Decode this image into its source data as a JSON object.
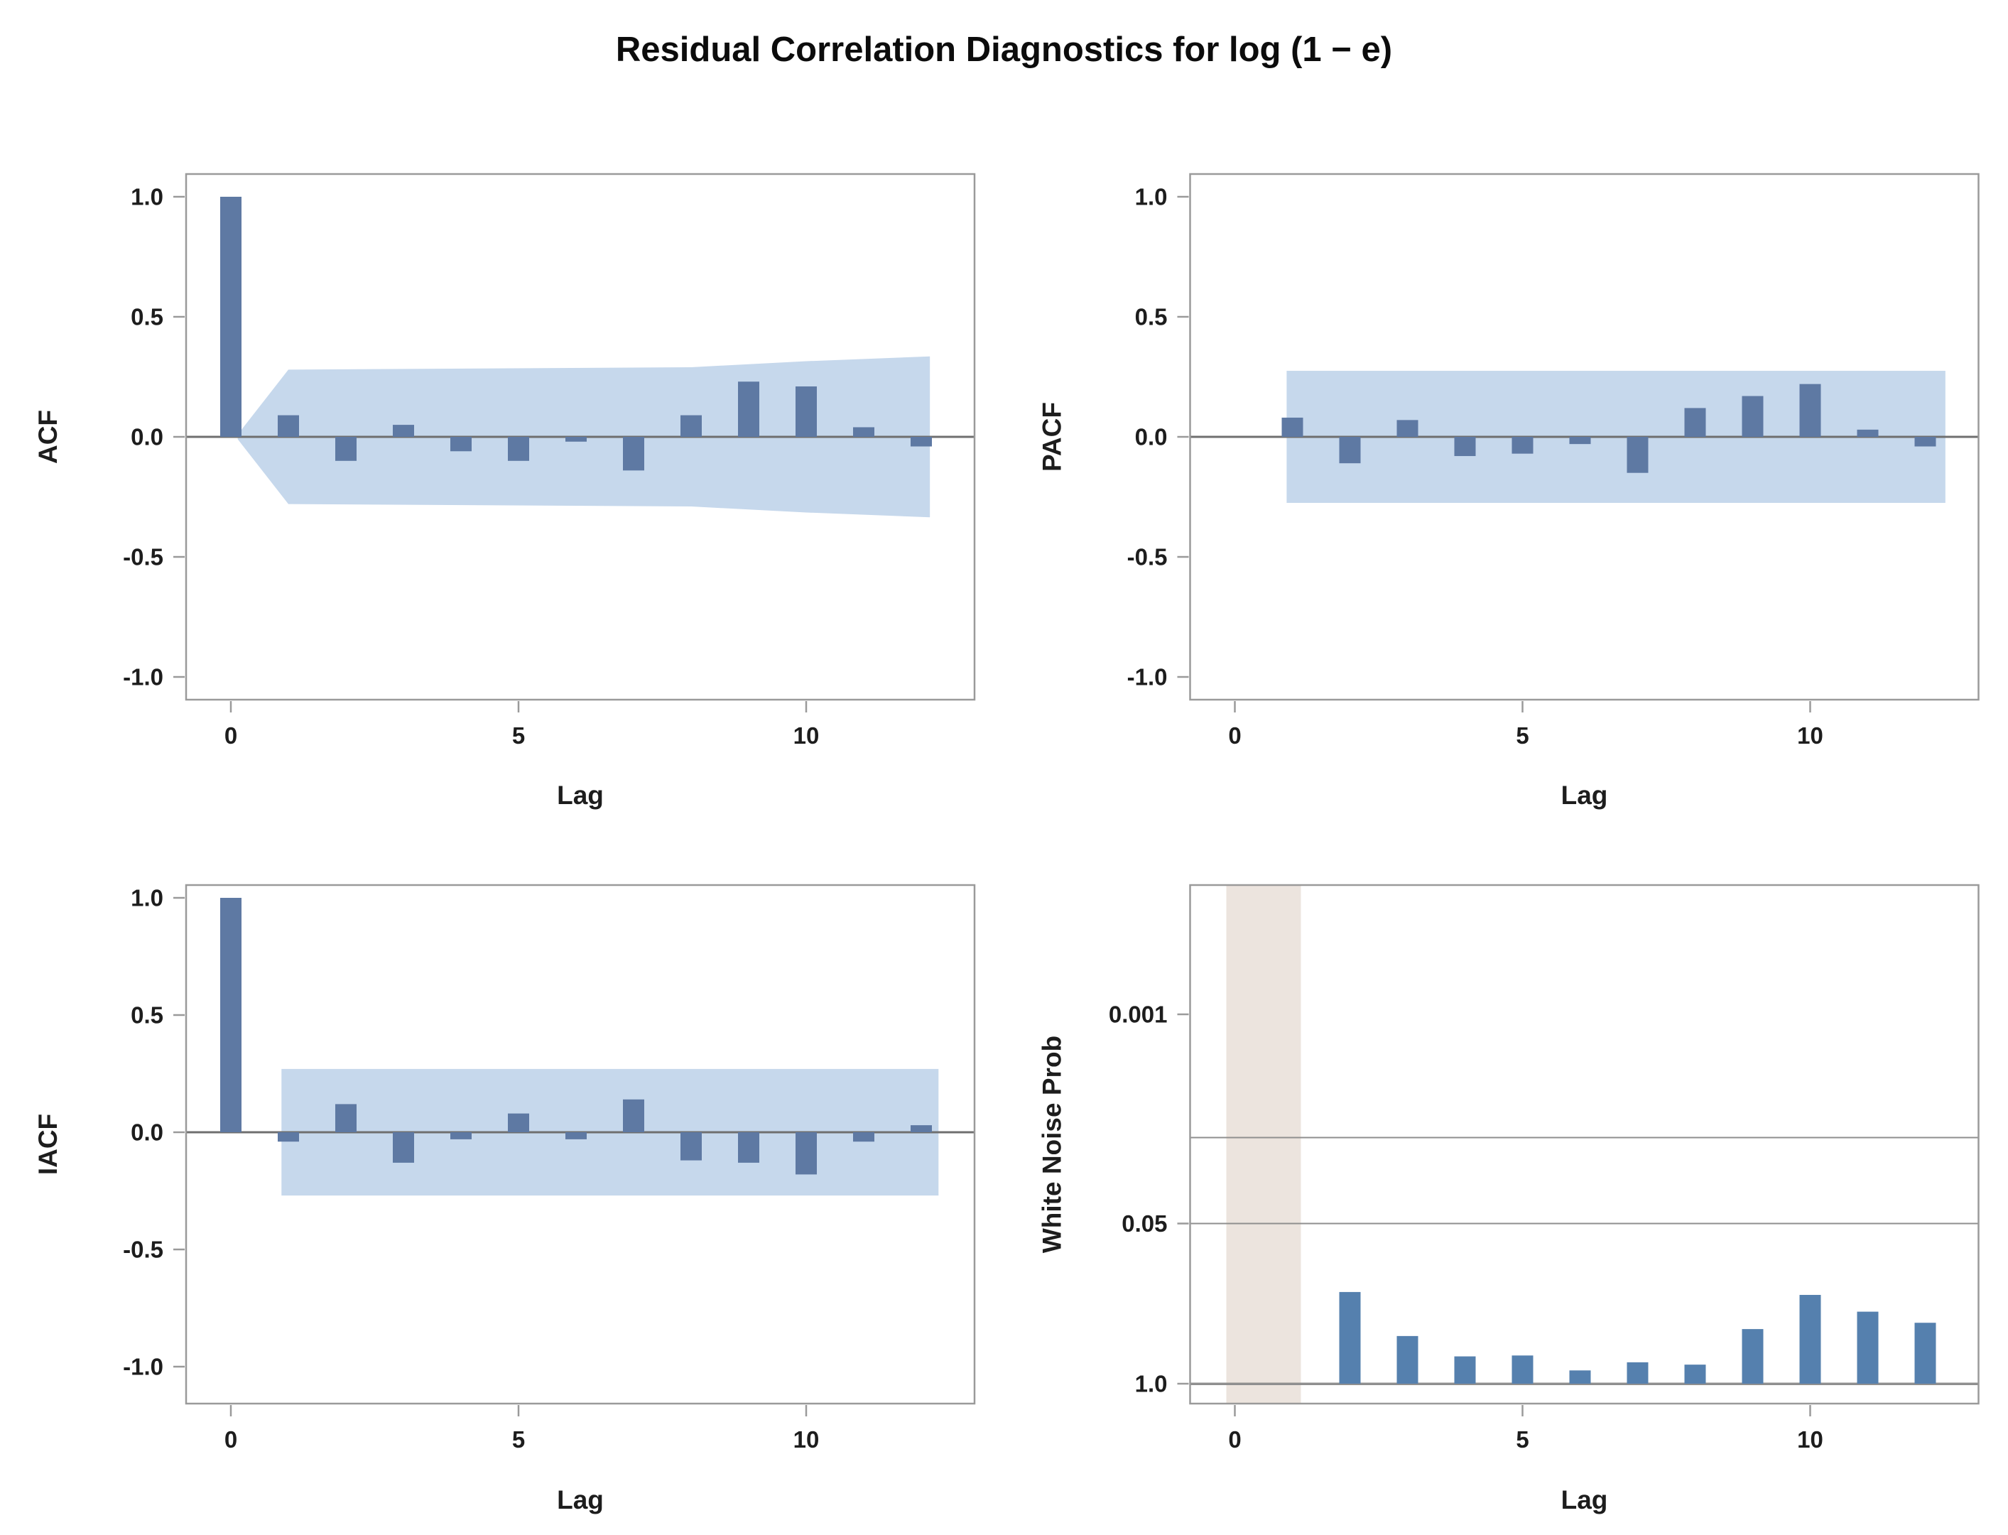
{
  "title": "Residual Correlation Diagnostics for log (1 − e)",
  "colors": {
    "corr_bar": "#5e79a3",
    "wn_bar": "#5580ae",
    "confidence_band": "#c6d8ec",
    "lag_zero_region": "#ece4de",
    "zero_line": "#6f6f6f",
    "gridline": "#8f8f8f",
    "panel_border": "#9a9a9a",
    "text": "#1d1d1d",
    "background": "#ffffff"
  },
  "chart_data": [
    {
      "id": "acf",
      "type": "bar",
      "scale": "linear",
      "ylabel": "ACF",
      "xlabel": "Lag",
      "ylim": [
        -1.1,
        1.1
      ],
      "xlim": [
        -0.8,
        12.9
      ],
      "yticks": [
        {
          "label": "1.0",
          "value": 1.0
        },
        {
          "label": "0.5",
          "value": 0.5
        },
        {
          "label": "0.0",
          "value": 0.0
        },
        {
          "label": "-0.5",
          "value": -0.5
        },
        {
          "label": "-1.0",
          "value": -1.0
        }
      ],
      "xticks": [
        {
          "label": "0",
          "value": 0
        },
        {
          "label": "5",
          "value": 5
        },
        {
          "label": "10",
          "value": 10
        }
      ],
      "x": [
        0,
        1,
        2,
        3,
        4,
        5,
        6,
        7,
        8,
        9,
        10,
        11,
        12
      ],
      "values": [
        1.0,
        0.09,
        -0.1,
        0.05,
        -0.06,
        -0.1,
        -0.02,
        -0.14,
        0.09,
        0.23,
        0.21,
        0.04,
        -0.04
      ],
      "zero_line": true,
      "band": {
        "shape": "funnel",
        "upper": [
          [
            0.12,
            0.01
          ],
          [
            1.0,
            0.28
          ],
          [
            8.0,
            0.29
          ],
          [
            10.0,
            0.315
          ],
          [
            12.15,
            0.335
          ]
        ]
      }
    },
    {
      "id": "pacf",
      "type": "bar",
      "scale": "linear",
      "ylabel": "PACF",
      "xlabel": "Lag",
      "ylim": [
        -1.1,
        1.1
      ],
      "xlim": [
        -0.8,
        12.9
      ],
      "yticks": [
        {
          "label": "1.0",
          "value": 1.0
        },
        {
          "label": "0.5",
          "value": 0.5
        },
        {
          "label": "0.0",
          "value": 0.0
        },
        {
          "label": "-0.5",
          "value": -0.5
        },
        {
          "label": "-1.0",
          "value": -1.0
        }
      ],
      "xticks": [
        {
          "label": "0",
          "value": 0
        },
        {
          "label": "5",
          "value": 5
        },
        {
          "label": "10",
          "value": 10
        }
      ],
      "x": [
        1,
        2,
        3,
        4,
        5,
        6,
        7,
        8,
        9,
        10,
        11,
        12
      ],
      "values": [
        0.08,
        -0.11,
        0.07,
        -0.08,
        -0.07,
        -0.03,
        -0.15,
        0.12,
        0.17,
        0.22,
        0.03,
        -0.04
      ],
      "zero_line": true,
      "band": {
        "shape": "rect",
        "from_lag": 0.9,
        "to_lag": 12.35,
        "halfwidth": 0.275
      }
    },
    {
      "id": "iacf",
      "type": "bar",
      "scale": "linear",
      "ylabel": "IACF",
      "xlabel": "Lag",
      "ylim": [
        -1.1,
        1.1
      ],
      "xlim": [
        -0.8,
        12.9
      ],
      "yticks": [
        {
          "label": "1.0",
          "value": 1.0
        },
        {
          "label": "0.5",
          "value": 0.5
        },
        {
          "label": "0.0",
          "value": 0.0
        },
        {
          "label": "-0.5",
          "value": -0.5
        },
        {
          "label": "-1.0",
          "value": -1.0
        }
      ],
      "xticks": [
        {
          "label": "0",
          "value": 0
        },
        {
          "label": "5",
          "value": 5
        },
        {
          "label": "10",
          "value": 10
        }
      ],
      "x": [
        0,
        1,
        2,
        3,
        4,
        5,
        6,
        7,
        8,
        9,
        10,
        11,
        12
      ],
      "values": [
        1.0,
        -0.04,
        0.12,
        -0.13,
        -0.03,
        0.08,
        -0.03,
        0.14,
        -0.12,
        -0.13,
        -0.18,
        -0.04,
        0.03
      ],
      "zero_line": true,
      "band": {
        "shape": "rect",
        "from_lag": 0.88,
        "to_lag": 12.3,
        "halfwidth": 0.27
      }
    },
    {
      "id": "white_noise_prob",
      "type": "bar",
      "scale": "log-reverse",
      "ylabel": "White Noise Prob",
      "xlabel": "Lag",
      "ylim_decades": 4.05,
      "baseline": 1.0,
      "yticks": [
        {
          "label": "0.001",
          "value": 0.001
        },
        {
          "label": "0.05",
          "value": 0.05
        },
        {
          "label": "1.0",
          "value": 1.0
        }
      ],
      "gridlines": [
        {
          "value": 0.01,
          "heavy": false
        },
        {
          "value": 0.05,
          "heavy": false
        },
        {
          "value": 1.0,
          "heavy": true
        }
      ],
      "xticks": [
        {
          "label": "0",
          "value": 0
        },
        {
          "label": "5",
          "value": 5
        },
        {
          "label": "10",
          "value": 10
        }
      ],
      "shaded_lag_region": [
        0,
        1
      ],
      "x": [
        2,
        3,
        4,
        5,
        6,
        7,
        8,
        9,
        10,
        11,
        12
      ],
      "values": [
        0.18,
        0.41,
        0.6,
        0.59,
        0.78,
        0.67,
        0.7,
        0.36,
        0.19,
        0.26,
        0.32
      ]
    }
  ]
}
